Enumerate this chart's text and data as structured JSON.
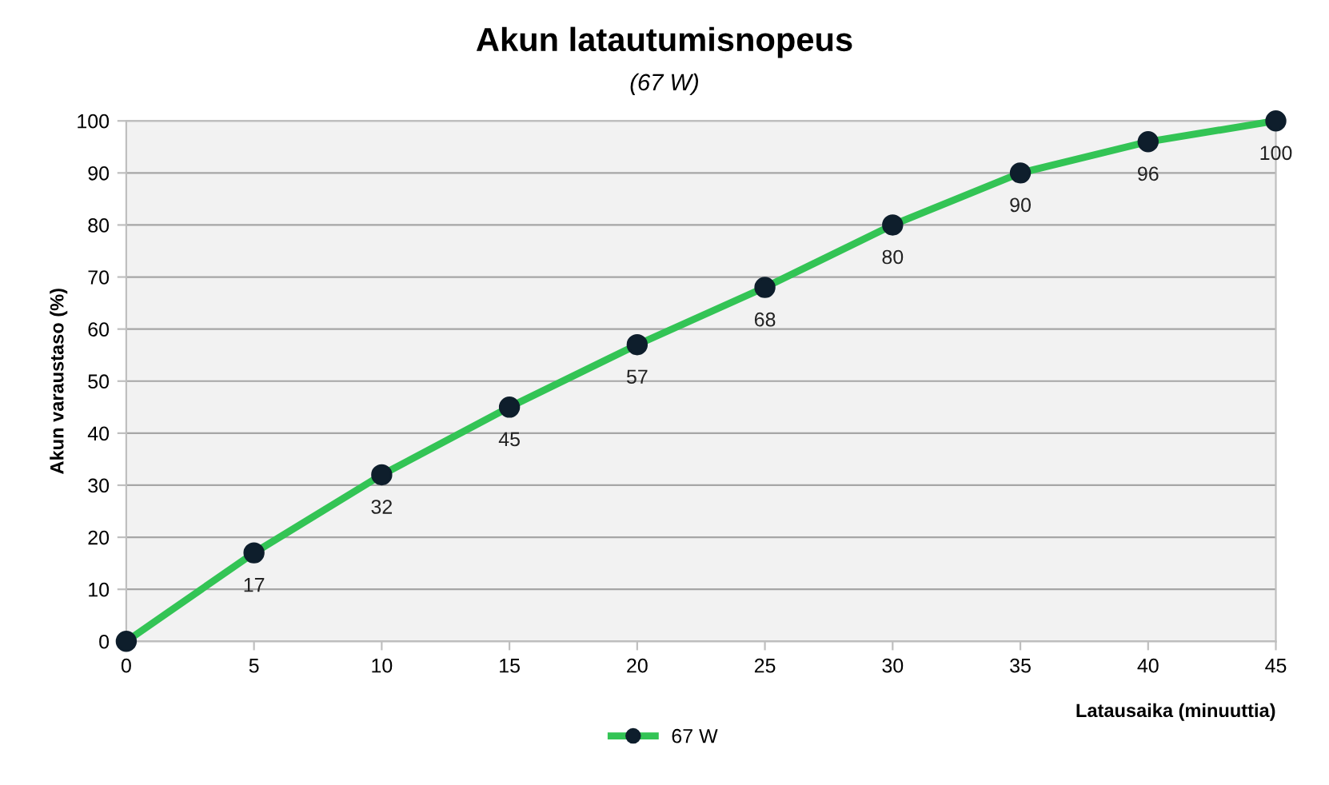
{
  "chart_data": {
    "type": "line",
    "title": "Akun latautumisnopeus",
    "subtitle": "(67 W)",
    "xlabel": "Latausaika (minuuttia)",
    "ylabel": "Akun varaustaso (%)",
    "x": [
      0,
      5,
      10,
      15,
      20,
      25,
      30,
      35,
      40,
      45
    ],
    "series": [
      {
        "name": "67 W",
        "color": "#33c455",
        "values": [
          0,
          17,
          32,
          45,
          57,
          68,
          80,
          90,
          96,
          100
        ],
        "value_labels": [
          null,
          "17",
          "32",
          "45",
          "57",
          "68",
          "80",
          "90",
          "96",
          "100"
        ]
      }
    ],
    "xlim": [
      0,
      45
    ],
    "xticks": [
      0,
      5,
      10,
      15,
      20,
      25,
      30,
      35,
      40,
      45
    ],
    "ylim": [
      0,
      100
    ],
    "yticks": [
      0,
      10,
      20,
      30,
      40,
      50,
      60,
      70,
      80,
      90,
      100
    ],
    "grid": "y",
    "legend": "bottom",
    "marker": "circle",
    "line_style": "solid"
  }
}
